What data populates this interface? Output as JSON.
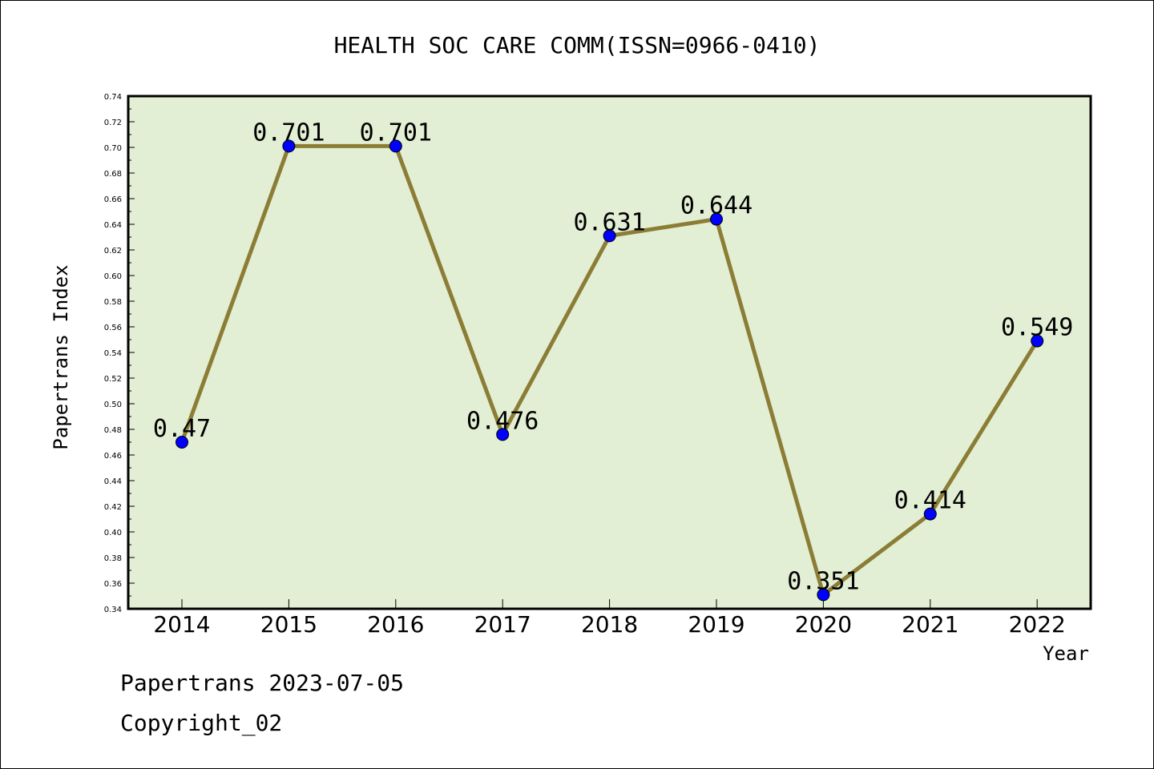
{
  "chart_data": {
    "type": "line",
    "title": "HEALTH SOC CARE COMM(ISSN=0966-0410)",
    "xlabel": "Year",
    "ylabel": "Papertrans Index",
    "categories": [
      "2014",
      "2015",
      "2016",
      "2017",
      "2018",
      "2019",
      "2020",
      "2021",
      "2022"
    ],
    "values": [
      0.47,
      0.701,
      0.701,
      0.476,
      0.631,
      0.644,
      0.351,
      0.414,
      0.549
    ],
    "data_labels": [
      "0.47",
      "0.701",
      "0.701",
      "0.476",
      "0.631",
      "0.644",
      "0.351",
      "0.414",
      "0.549"
    ],
    "ylim": [
      0.34,
      0.74
    ],
    "yticks": [
      "0.34",
      "0.36",
      "0.38",
      "0.40",
      "0.42",
      "0.44",
      "0.46",
      "0.48",
      "0.50",
      "0.52",
      "0.54",
      "0.56",
      "0.58",
      "0.60",
      "0.62",
      "0.64",
      "0.66",
      "0.68",
      "0.70",
      "0.72",
      "0.74"
    ],
    "grid": false,
    "colors": {
      "plot_background": "#e2efd4",
      "line": "#8b7d35",
      "marker": "#0000ff"
    }
  },
  "footer": {
    "date_line": "Papertrans 2023-07-05",
    "copyright": "Copyright_02"
  }
}
